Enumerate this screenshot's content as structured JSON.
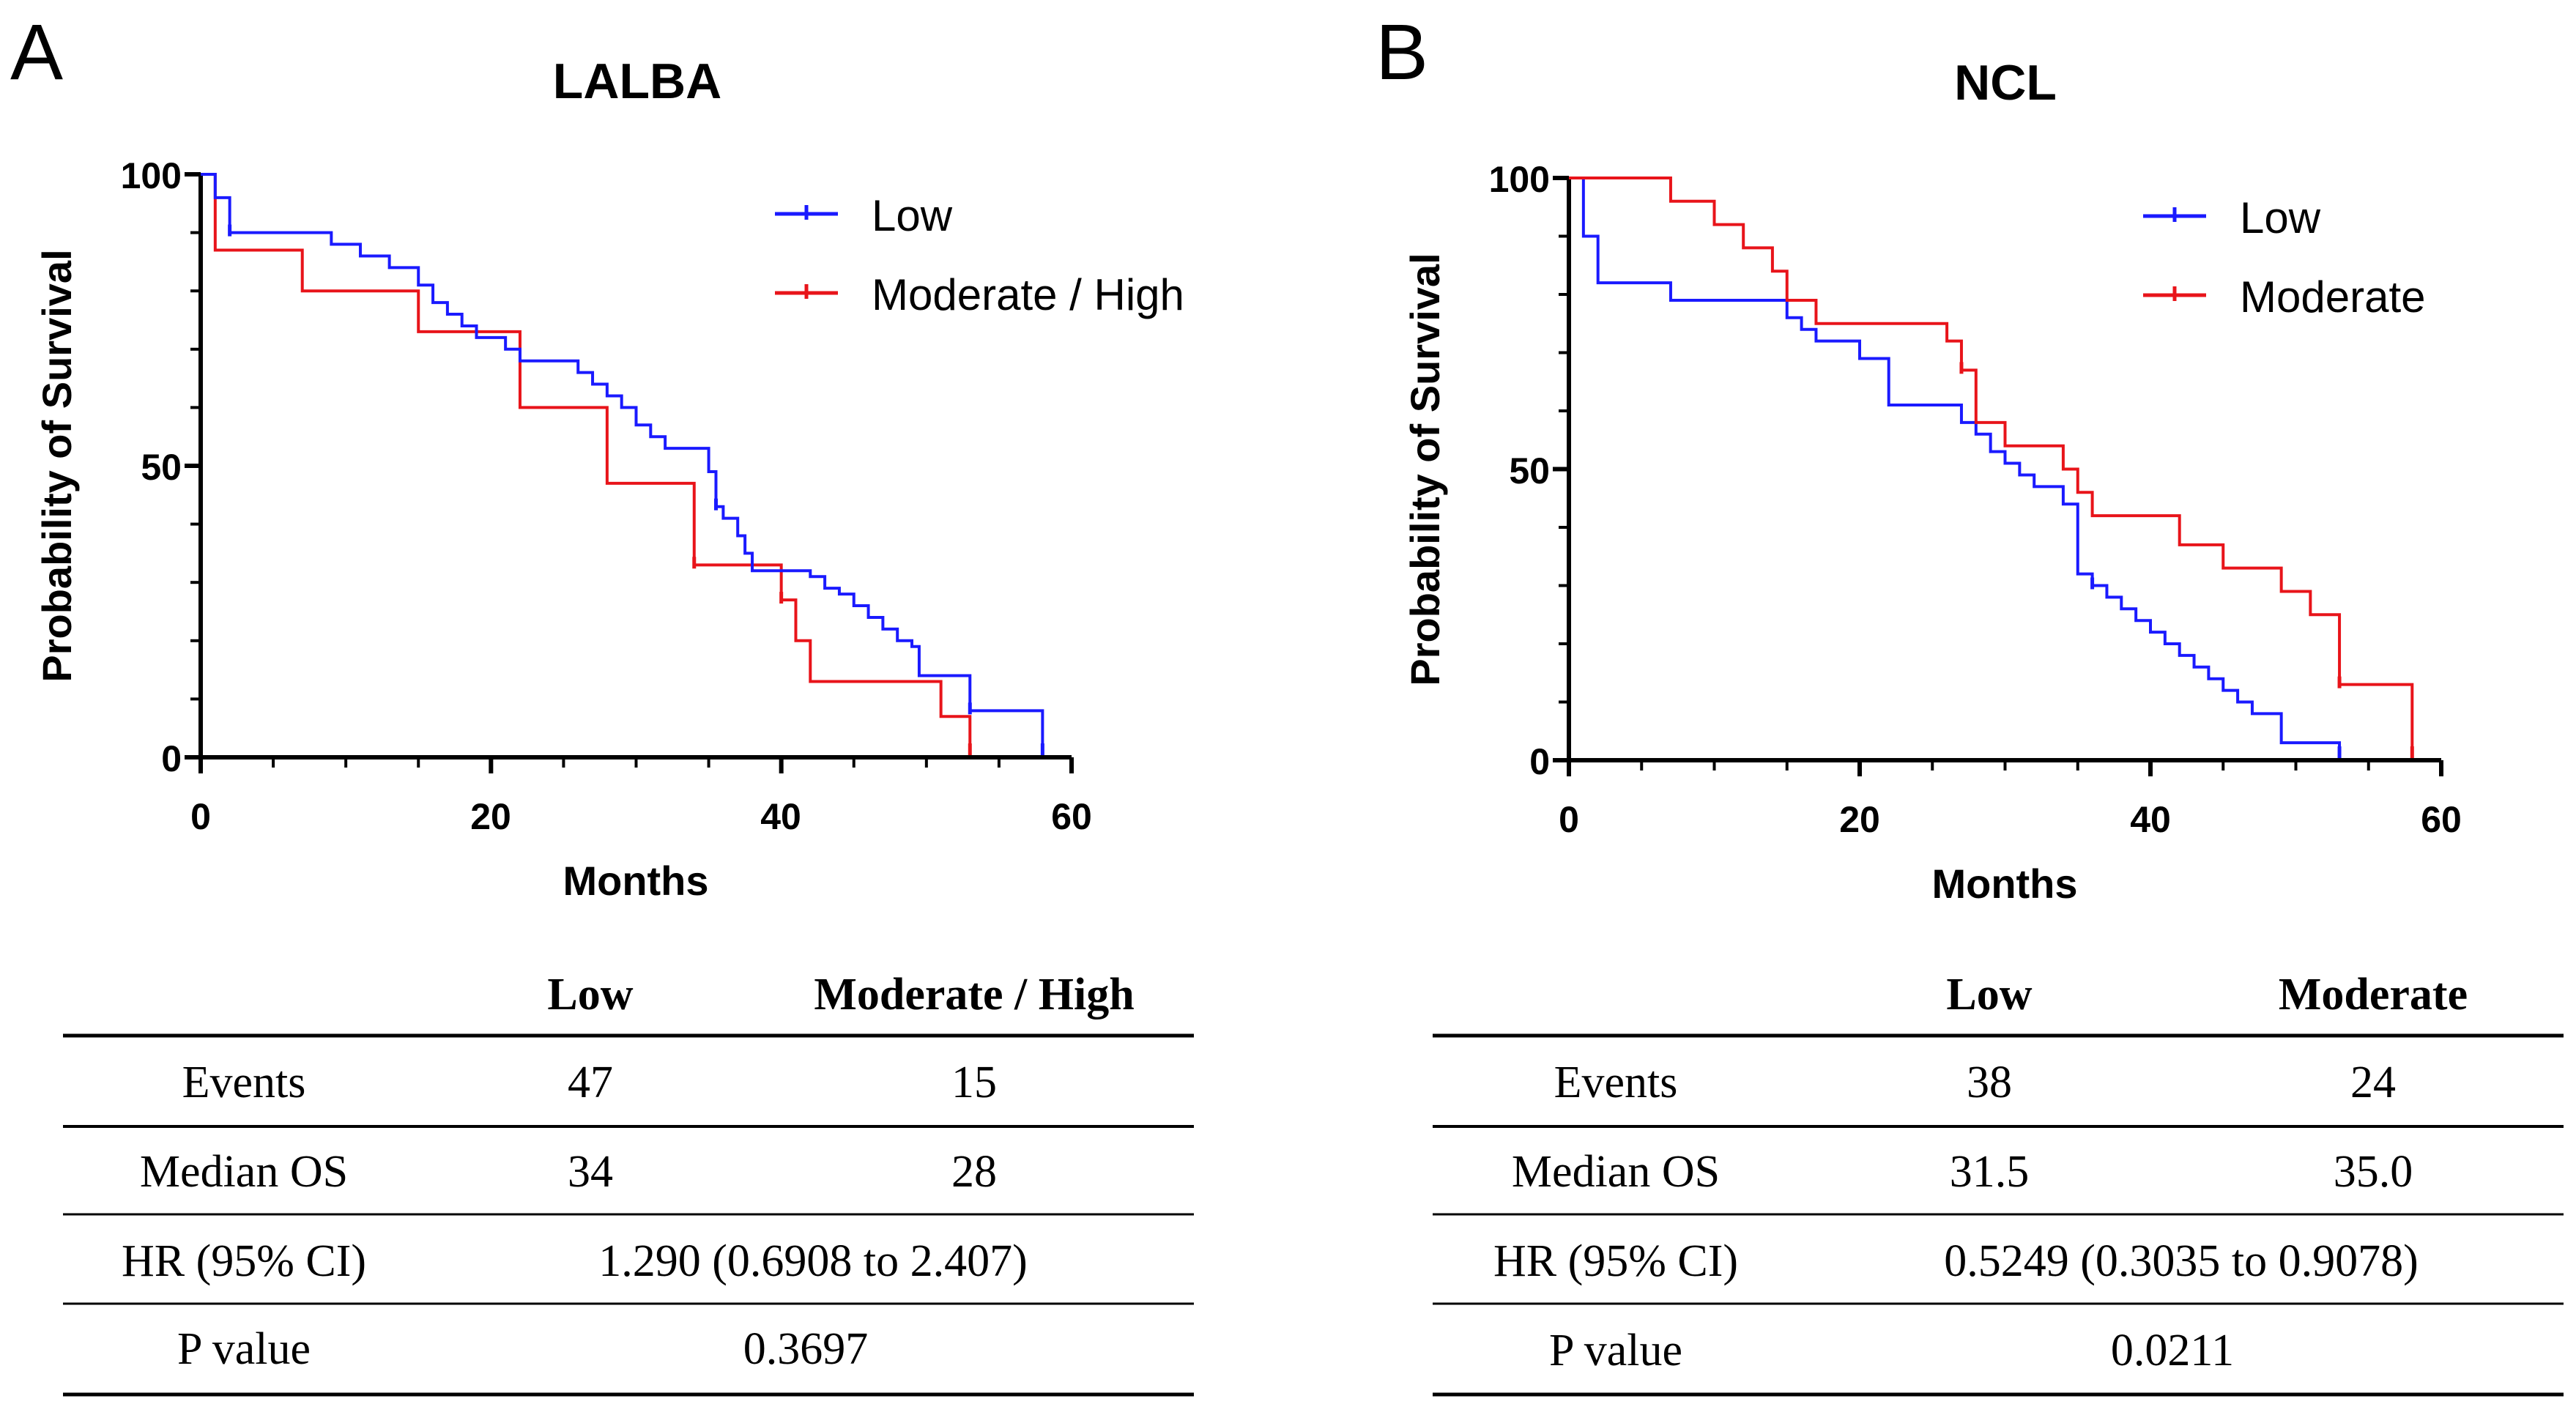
{
  "chart_data": [
    {
      "type": "line",
      "panel": "A",
      "title": "LALBA",
      "xlabel": "Months",
      "ylabel": "Probability of Survival",
      "xlim": [
        0,
        60
      ],
      "ylim": [
        0,
        100
      ],
      "xticks": [
        0,
        20,
        40,
        60
      ],
      "yticks": [
        0,
        50,
        100
      ],
      "legend_position": "top-right",
      "series": [
        {
          "name": "Low",
          "color": "#1a1aff",
          "steps": [
            [
              0,
              100
            ],
            [
              1,
              96
            ],
            [
              2,
              90
            ],
            [
              9,
              88
            ],
            [
              11,
              86
            ],
            [
              13,
              84
            ],
            [
              15,
              81
            ],
            [
              16,
              78
            ],
            [
              17,
              76
            ],
            [
              18,
              74
            ],
            [
              19,
              72
            ],
            [
              21,
              70
            ],
            [
              22,
              68
            ],
            [
              26,
              66
            ],
            [
              27,
              64
            ],
            [
              28,
              62
            ],
            [
              29,
              60
            ],
            [
              30,
              57
            ],
            [
              31,
              55
            ],
            [
              32,
              53
            ],
            [
              35,
              49
            ],
            [
              35.5,
              43
            ],
            [
              36,
              41
            ],
            [
              37,
              38
            ],
            [
              37.5,
              35
            ],
            [
              38,
              32
            ],
            [
              42,
              31
            ],
            [
              43,
              29
            ],
            [
              44,
              28
            ],
            [
              45,
              26
            ],
            [
              46,
              24
            ],
            [
              47,
              22
            ],
            [
              48,
              20
            ],
            [
              49,
              19
            ],
            [
              49.5,
              14
            ],
            [
              53,
              8
            ],
            [
              58,
              1
            ]
          ],
          "censored": [
            [
              2,
              90
            ],
            [
              35.5,
              43
            ],
            [
              53,
              8
            ],
            [
              58,
              1
            ]
          ]
        },
        {
          "name": "Moderate / High",
          "color": "#e8141a",
          "steps": [
            [
              0,
              100
            ],
            [
              1,
              87
            ],
            [
              7,
              80
            ],
            [
              15,
              73
            ],
            [
              22,
              60
            ],
            [
              28,
              47
            ],
            [
              34,
              33
            ],
            [
              40,
              27
            ],
            [
              41,
              20
            ],
            [
              42,
              13
            ],
            [
              51,
              7
            ],
            [
              53,
              1
            ]
          ],
          "censored": [
            [
              34,
              33
            ],
            [
              40,
              27
            ],
            [
              53,
              1
            ]
          ]
        }
      ],
      "table": {
        "headers": [
          "",
          "Low",
          "Moderate / High"
        ],
        "events_label": "Events",
        "events": [
          "47",
          "15"
        ],
        "median_label": "Median OS",
        "median": [
          "34",
          "28"
        ],
        "hr_label": "HR (95% CI)",
        "hr": "1.290 (0.6908 to 2.407)",
        "p_label": "P value",
        "p": "0.3697"
      }
    },
    {
      "type": "line",
      "panel": "B",
      "title": "NCL",
      "xlabel": "Months",
      "ylabel": "Probability of Survival",
      "xlim": [
        0,
        60
      ],
      "ylim": [
        0,
        100
      ],
      "xticks": [
        0,
        20,
        40,
        60
      ],
      "yticks": [
        0,
        50,
        100
      ],
      "legend_position": "top-right",
      "series": [
        {
          "name": "Low",
          "color": "#1a1aff",
          "steps": [
            [
              0,
              100
            ],
            [
              1,
              90
            ],
            [
              2,
              82
            ],
            [
              7,
              79
            ],
            [
              15,
              76
            ],
            [
              16,
              74
            ],
            [
              17,
              72
            ],
            [
              20,
              69
            ],
            [
              22,
              61
            ],
            [
              27,
              58
            ],
            [
              28,
              56
            ],
            [
              29,
              53
            ],
            [
              30,
              51
            ],
            [
              31,
              49
            ],
            [
              32,
              47
            ],
            [
              34,
              44
            ],
            [
              35,
              32
            ],
            [
              36,
              30
            ],
            [
              37,
              28
            ],
            [
              38,
              26
            ],
            [
              39,
              24
            ],
            [
              40,
              22
            ],
            [
              41,
              20
            ],
            [
              42,
              18
            ],
            [
              43,
              16
            ],
            [
              44,
              14
            ],
            [
              45,
              12
            ],
            [
              46,
              10
            ],
            [
              47,
              8
            ],
            [
              49,
              3
            ],
            [
              53,
              1
            ]
          ],
          "censored": [
            [
              36,
              30
            ],
            [
              53,
              1
            ]
          ]
        },
        {
          "name": "Moderate",
          "color": "#e8141a",
          "steps": [
            [
              0,
              100
            ],
            [
              7,
              96
            ],
            [
              10,
              92
            ],
            [
              12,
              88
            ],
            [
              14,
              84
            ],
            [
              15,
              79
            ],
            [
              17,
              75
            ],
            [
              26,
              72
            ],
            [
              27,
              67
            ],
            [
              28,
              58
            ],
            [
              30,
              54
            ],
            [
              34,
              50
            ],
            [
              35,
              46
            ],
            [
              36,
              42
            ],
            [
              42,
              37
            ],
            [
              45,
              33
            ],
            [
              49,
              29
            ],
            [
              51,
              25
            ],
            [
              53,
              13
            ],
            [
              58,
              1
            ]
          ],
          "censored": [
            [
              27,
              67
            ],
            [
              53,
              13
            ],
            [
              58,
              1
            ]
          ]
        }
      ],
      "table": {
        "headers": [
          "",
          "Low",
          "Moderate"
        ],
        "events_label": "Events",
        "events": [
          "38",
          "24"
        ],
        "median_label": "Median OS",
        "median": [
          "31.5",
          "35.0"
        ],
        "hr_label": "HR (95% CI)",
        "hr": "0.5249 (0.3035 to 0.9078)",
        "p_label": "P value",
        "p": "0.0211"
      }
    }
  ]
}
